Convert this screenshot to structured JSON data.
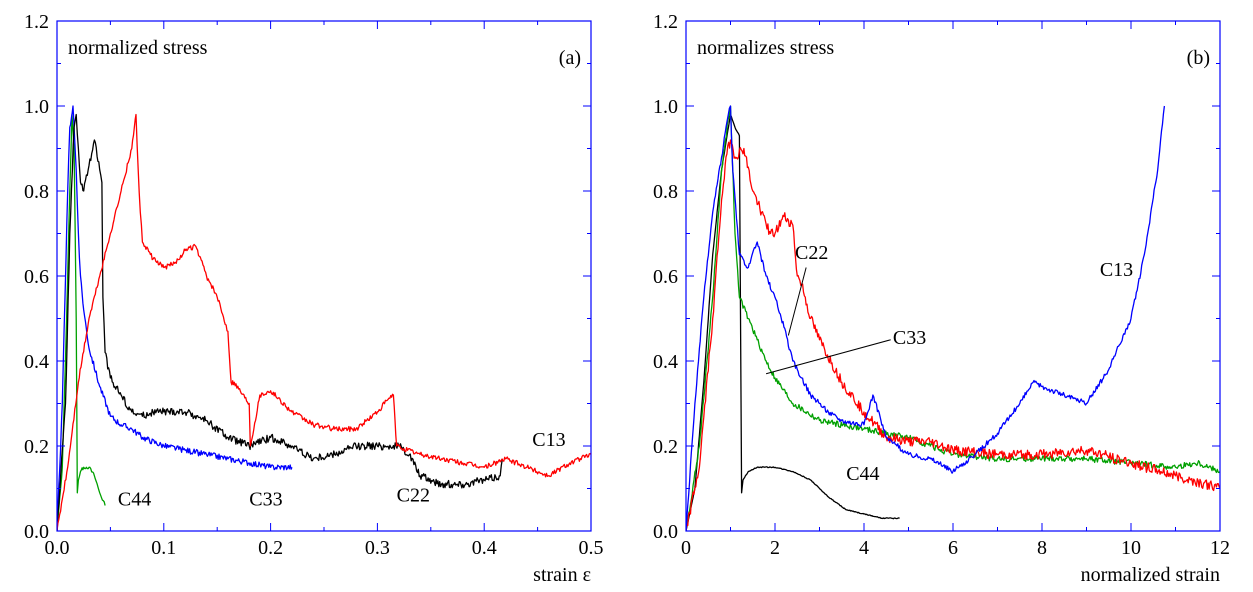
{
  "chart_data": [
    {
      "type": "line",
      "panel_label": "(a)",
      "annotation": "normalized stress",
      "xlabel": "strain ε",
      "ylabel": "",
      "xlim": [
        0,
        0.5
      ],
      "ylim": [
        0,
        1.2
      ],
      "xticks": [
        0.0,
        0.1,
        0.2,
        0.3,
        0.4,
        0.5
      ],
      "xtick_labels": [
        "0.0",
        "0.1",
        "0.2",
        "0.3",
        "0.4",
        "0.5"
      ],
      "yticks": [
        0.0,
        0.2,
        0.4,
        0.6,
        0.8,
        1.0,
        1.2
      ],
      "ytick_labels": [
        "0.0",
        "0.2",
        "0.4",
        "0.6",
        "0.8",
        "1.0",
        "1.2"
      ],
      "grid": false,
      "series": [
        {
          "name": "C44",
          "color": "#00a000",
          "noise": 0.004,
          "x": [
            0,
            0.005,
            0.009,
            0.012,
            0.014,
            0.016,
            0.018,
            0.019,
            0.02,
            0.022,
            0.025,
            0.03,
            0.035,
            0.04,
            0.045
          ],
          "y": [
            0,
            0.15,
            0.5,
            0.8,
            0.98,
            0.9,
            0.5,
            0.09,
            0.12,
            0.14,
            0.15,
            0.15,
            0.13,
            0.09,
            0.06
          ]
        },
        {
          "name": "C33",
          "color": "#0000ff",
          "noise": 0.007,
          "x": [
            0,
            0.005,
            0.01,
            0.012,
            0.015,
            0.018,
            0.02,
            0.022,
            0.025,
            0.03,
            0.04,
            0.05,
            0.06,
            0.07,
            0.08,
            0.1,
            0.12,
            0.14,
            0.16,
            0.18,
            0.2,
            0.22
          ],
          "y": [
            0,
            0.3,
            0.8,
            0.95,
            1.0,
            0.85,
            0.7,
            0.6,
            0.52,
            0.43,
            0.34,
            0.27,
            0.25,
            0.24,
            0.22,
            0.2,
            0.19,
            0.18,
            0.17,
            0.16,
            0.15,
            0.15
          ]
        },
        {
          "name": "C22",
          "color": "#000000",
          "noise": 0.009,
          "x": [
            0,
            0.008,
            0.012,
            0.016,
            0.018,
            0.02,
            0.022,
            0.025,
            0.03,
            0.035,
            0.04,
            0.042,
            0.043,
            0.045,
            0.05,
            0.06,
            0.07,
            0.08,
            0.09,
            0.1,
            0.12,
            0.14,
            0.16,
            0.18,
            0.2,
            0.22,
            0.24,
            0.26,
            0.28,
            0.3,
            0.32,
            0.33,
            0.34,
            0.36,
            0.38,
            0.4,
            0.415,
            0.417
          ],
          "y": [
            0,
            0.3,
            0.7,
            0.95,
            0.98,
            0.9,
            0.82,
            0.8,
            0.86,
            0.92,
            0.85,
            0.82,
            0.55,
            0.42,
            0.36,
            0.32,
            0.28,
            0.27,
            0.28,
            0.28,
            0.28,
            0.26,
            0.22,
            0.2,
            0.22,
            0.2,
            0.17,
            0.18,
            0.2,
            0.2,
            0.2,
            0.18,
            0.13,
            0.11,
            0.11,
            0.12,
            0.13,
            0.17
          ]
        },
        {
          "name": "C13",
          "color": "#ff0000",
          "noise": 0.006,
          "x": [
            0,
            0.01,
            0.02,
            0.03,
            0.04,
            0.05,
            0.06,
            0.07,
            0.074,
            0.076,
            0.078,
            0.08,
            0.09,
            0.1,
            0.11,
            0.12,
            0.13,
            0.14,
            0.15,
            0.16,
            0.163,
            0.166,
            0.18,
            0.181,
            0.19,
            0.2,
            0.22,
            0.24,
            0.26,
            0.28,
            0.3,
            0.31,
            0.315,
            0.318,
            0.34,
            0.36,
            0.38,
            0.4,
            0.42,
            0.44,
            0.46,
            0.48,
            0.5
          ],
          "y": [
            0,
            0.15,
            0.35,
            0.5,
            0.6,
            0.7,
            0.8,
            0.9,
            0.98,
            0.85,
            0.75,
            0.68,
            0.64,
            0.62,
            0.63,
            0.66,
            0.67,
            0.6,
            0.55,
            0.47,
            0.35,
            0.35,
            0.3,
            0.2,
            0.32,
            0.33,
            0.28,
            0.25,
            0.24,
            0.24,
            0.28,
            0.31,
            0.32,
            0.2,
            0.18,
            0.17,
            0.16,
            0.15,
            0.17,
            0.15,
            0.13,
            0.16,
            0.18
          ]
        }
      ],
      "annotations": [
        {
          "text": "C44",
          "x": 0.057,
          "y": 0.06
        },
        {
          "text": "C33",
          "x": 0.18,
          "y": 0.06
        },
        {
          "text": "C22",
          "x": 0.318,
          "y": 0.07
        },
        {
          "text": "C13",
          "x": 0.445,
          "y": 0.2
        }
      ]
    },
    {
      "type": "line",
      "panel_label": "(b)",
      "annotation": "normalizes stress",
      "xlabel": "normalized strain",
      "ylabel": "",
      "xlim": [
        0,
        12
      ],
      "ylim": [
        0,
        1.2
      ],
      "xticks": [
        0,
        2,
        4,
        6,
        8,
        10,
        12
      ],
      "xtick_labels": [
        "0",
        "2",
        "4",
        "6",
        "8",
        "10",
        "12"
      ],
      "yticks": [
        0.0,
        0.2,
        0.4,
        0.6,
        0.8,
        1.0,
        1.2
      ],
      "ytick_labels": [
        "0.0",
        "0.2",
        "0.4",
        "0.6",
        "0.8",
        "1.0",
        "1.2"
      ],
      "grid": false,
      "series": [
        {
          "name": "C44",
          "color": "#000000",
          "noise": 0.001,
          "x": [
            0,
            0.2,
            0.4,
            0.6,
            0.8,
            1.0,
            1.1,
            1.2,
            1.25,
            1.28,
            1.4,
            1.6,
            2.0,
            2.4,
            2.8,
            3.2,
            3.6,
            4.0,
            4.4,
            4.8
          ],
          "y": [
            0,
            0.1,
            0.35,
            0.65,
            0.85,
            0.98,
            0.95,
            0.93,
            0.09,
            0.12,
            0.14,
            0.15,
            0.15,
            0.14,
            0.12,
            0.08,
            0.05,
            0.04,
            0.03,
            0.03
          ]
        },
        {
          "name": "C33",
          "color": "#00a000",
          "noise": 0.007,
          "x": [
            0,
            0.3,
            0.6,
            0.8,
            0.95,
            1.0,
            1.1,
            1.2,
            1.4,
            1.6,
            1.8,
            2.0,
            2.4,
            3.0,
            4.0,
            5.0,
            6.0,
            7.0,
            8.0,
            9.0,
            10.0,
            11.0,
            11.5,
            12.0
          ],
          "y": [
            0,
            0.2,
            0.55,
            0.85,
            0.97,
            1.0,
            0.7,
            0.55,
            0.5,
            0.45,
            0.4,
            0.36,
            0.3,
            0.26,
            0.24,
            0.22,
            0.18,
            0.17,
            0.17,
            0.17,
            0.16,
            0.15,
            0.16,
            0.14
          ]
        },
        {
          "name": "C22",
          "color": "#ff0000",
          "noise": 0.012,
          "x": [
            0,
            0.3,
            0.6,
            0.8,
            0.9,
            1.0,
            1.1,
            1.3,
            1.5,
            1.7,
            1.9,
            2.0,
            2.2,
            2.4,
            2.5,
            2.6,
            2.8,
            3.0,
            3.5,
            4.0,
            4.5,
            5.0,
            5.5,
            6.0,
            7.0,
            8.0,
            9.0,
            10.0,
            11.0,
            12.0
          ],
          "y": [
            0,
            0.15,
            0.5,
            0.78,
            0.88,
            0.92,
            0.88,
            0.9,
            0.8,
            0.75,
            0.7,
            0.7,
            0.74,
            0.72,
            0.6,
            0.58,
            0.5,
            0.45,
            0.35,
            0.28,
            0.22,
            0.21,
            0.21,
            0.19,
            0.18,
            0.18,
            0.19,
            0.16,
            0.13,
            0.1
          ]
        },
        {
          "name": "C13",
          "color": "#0000ff",
          "noise": 0.006,
          "x": [
            0,
            0.2,
            0.4,
            0.6,
            0.8,
            0.9,
            0.95,
            1.0,
            1.05,
            1.2,
            1.4,
            1.6,
            1.8,
            2.0,
            2.2,
            2.4,
            2.6,
            2.8,
            3.0,
            3.2,
            3.5,
            4.0,
            4.2,
            4.5,
            5.0,
            5.5,
            6.0,
            6.5,
            7.0,
            7.5,
            7.8,
            8.0,
            8.5,
            9.0,
            9.5,
            10.0,
            10.3,
            10.6,
            10.75
          ],
          "y": [
            0,
            0.3,
            0.55,
            0.75,
            0.88,
            0.95,
            0.98,
            1.0,
            0.85,
            0.65,
            0.62,
            0.68,
            0.6,
            0.55,
            0.48,
            0.4,
            0.36,
            0.32,
            0.3,
            0.28,
            0.26,
            0.25,
            0.32,
            0.22,
            0.18,
            0.17,
            0.14,
            0.18,
            0.23,
            0.3,
            0.35,
            0.34,
            0.32,
            0.3,
            0.38,
            0.5,
            0.65,
            0.85,
            1.0
          ]
        }
      ],
      "annotations": [
        {
          "text": "C22",
          "x": 2.45,
          "y": 0.64,
          "lx1": 2.7,
          "ly1": 0.62,
          "lx2": 2.3,
          "ly2": 0.46
        },
        {
          "text": "C33",
          "x": 4.65,
          "y": 0.44,
          "lx1": 4.6,
          "ly1": 0.45,
          "lx2": 1.8,
          "ly2": 0.37
        },
        {
          "text": "C13",
          "x": 9.3,
          "y": 0.6
        },
        {
          "text": "C44",
          "x": 3.6,
          "y": 0.12
        }
      ]
    }
  ]
}
